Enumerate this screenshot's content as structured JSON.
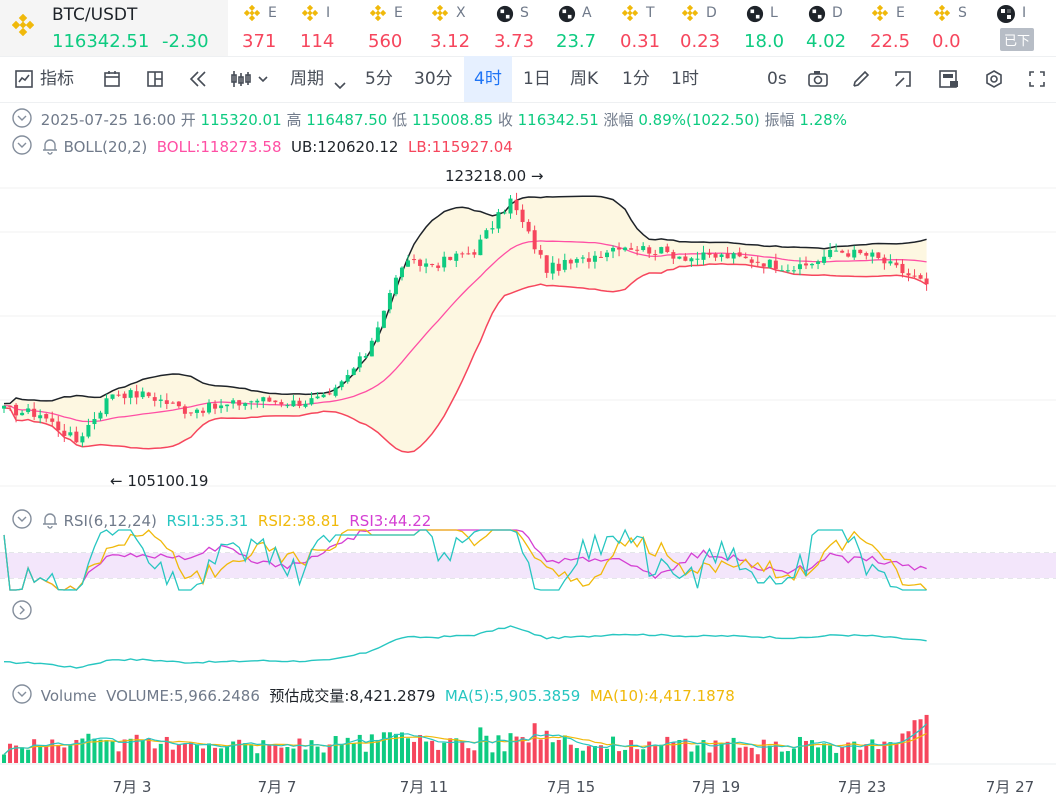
{
  "ticker_bar": {
    "pair": "BTC/USDT",
    "price": "116342.51",
    "change": "-2.30",
    "items": [
      {
        "icon": "bnb-icon",
        "name": "E",
        "value": "371",
        "dir": "down"
      },
      {
        "icon": "bnb-icon",
        "name": "I",
        "value": "114",
        "dir": "down"
      },
      {
        "icon": "bnb-icon",
        "name": "E",
        "value": "560",
        "dir": "down"
      },
      {
        "icon": "bnb-icon",
        "name": "X",
        "value": "3.12",
        "dir": "down"
      },
      {
        "icon": "checker-icon",
        "name": "S",
        "value": "3.73",
        "dir": "down"
      },
      {
        "icon": "checker-icon",
        "name": "A",
        "value": "23.7",
        "dir": "up"
      },
      {
        "icon": "bnb-icon",
        "name": "T",
        "value": "0.31",
        "dir": "down"
      },
      {
        "icon": "bnb-icon",
        "name": "D",
        "value": "0.23",
        "dir": "down"
      },
      {
        "icon": "checker-icon",
        "name": "L",
        "value": "18.0",
        "dir": "up"
      },
      {
        "icon": "checker-icon",
        "name": "D",
        "value": "4.02",
        "dir": "up"
      },
      {
        "icon": "bnb-icon",
        "name": "E",
        "value": "22.5",
        "dir": "down"
      },
      {
        "icon": "bnb-icon",
        "name": "S",
        "value": "0.0",
        "dir": "down"
      }
    ],
    "last_item": {
      "icon": "checker-icon",
      "name": "I",
      "status": "已下"
    }
  },
  "toolbar": {
    "indicator_label": "指标",
    "period_label": "周期",
    "intervals": [
      "5分",
      "30分",
      "4时",
      "1日",
      "周K",
      "1分",
      "1时"
    ],
    "selected_interval": "4时",
    "countdown": "0s"
  },
  "ohlc": {
    "date": "2025-07-25 16:00",
    "open_label": "开",
    "open": "115320.01",
    "high_label": "高",
    "high": "116487.50",
    "low_label": "低",
    "low": "115008.85",
    "close_label": "收",
    "close": "116342.51",
    "change_label": "涨幅",
    "change": "0.89%(1022.50)",
    "amp_label": "振幅",
    "amp": "1.28%"
  },
  "boll": {
    "label": "BOLL(20,2)",
    "mid": "BOLL:118273.58",
    "ub": "UB:120620.12",
    "lb": "LB:115927.04"
  },
  "rsi": {
    "label": "RSI(6,12,24)",
    "rsi1": "RSI1:35.31",
    "rsi2": "RSI2:38.81",
    "rsi3": "RSI3:44.22"
  },
  "volume": {
    "label": "Volume",
    "volume": "VOLUME:5,966.2486",
    "estimate": "预估成交量:8,421.2879",
    "ma5": "MA(5):5,905.3859",
    "ma10": "MA(10):4,417.1878"
  },
  "colors": {
    "up": "#0ecb81",
    "down": "#f6465d",
    "boll_mid": "#ff4fa4",
    "boll_band": "#1e2329",
    "band_fill": "#fdf7e1",
    "rsi1": "#27c6c1",
    "rsi2": "#f0b90b",
    "rsi3": "#d43fd3",
    "rsi_zone": "#f3e6fb"
  },
  "chart_data": {
    "type": "candlestick",
    "symbol": "BTC/USDT",
    "interval": "4h",
    "y_range": [
      102000,
      125000
    ],
    "x_labels": [
      "7月 3",
      "7月 7",
      "7月 11",
      "7月 15",
      "7月 19",
      "7月 23",
      "7月 27"
    ],
    "annotations": [
      {
        "text": "123218.00",
        "date": "7月 14",
        "price": 123218.0,
        "type": "high"
      },
      {
        "text": "105100.19",
        "date": "7月 2",
        "price": 105100.19,
        "type": "low"
      }
    ],
    "close_path": [
      {
        "date": "6月 30",
        "close": 107600
      },
      {
        "date": "7月 1",
        "close": 107300
      },
      {
        "date": "7月 2",
        "close": 105400
      },
      {
        "date": "7月 3",
        "close": 108800
      },
      {
        "date": "7月 4",
        "close": 108600
      },
      {
        "date": "7月 5",
        "close": 107600
      },
      {
        "date": "7月 6",
        "close": 107800
      },
      {
        "date": "7月 7",
        "close": 108300
      },
      {
        "date": "7月 8",
        "close": 108100
      },
      {
        "date": "7月 9",
        "close": 108400
      },
      {
        "date": "7月 10",
        "close": 111500
      },
      {
        "date": "7月 11",
        "close": 117700
      },
      {
        "date": "7月 12",
        "close": 117800
      },
      {
        "date": "7月 13",
        "close": 118700
      },
      {
        "date": "7月 14",
        "close": 122200
      },
      {
        "date": "7月 15",
        "close": 117400
      },
      {
        "date": "7月 16",
        "close": 118000
      },
      {
        "date": "7月 17",
        "close": 119100
      },
      {
        "date": "7月 18",
        "close": 118700
      },
      {
        "date": "7月 19",
        "close": 118200
      },
      {
        "date": "7月 20",
        "close": 118300
      },
      {
        "date": "7月 21",
        "close": 117900
      },
      {
        "date": "7月 22",
        "close": 117400
      },
      {
        "date": "7月 23",
        "close": 118700
      },
      {
        "date": "7月 24",
        "close": 118300
      },
      {
        "date": "7月 25",
        "close": 116342.51
      }
    ],
    "boll_last": {
      "mid": 118273.58,
      "ub": 120620.12,
      "lb": 115927.04
    },
    "rsi_last": {
      "rsi1": 35.31,
      "rsi2": 38.81,
      "rsi3": 44.22
    },
    "volume_last": 5966.2486
  }
}
